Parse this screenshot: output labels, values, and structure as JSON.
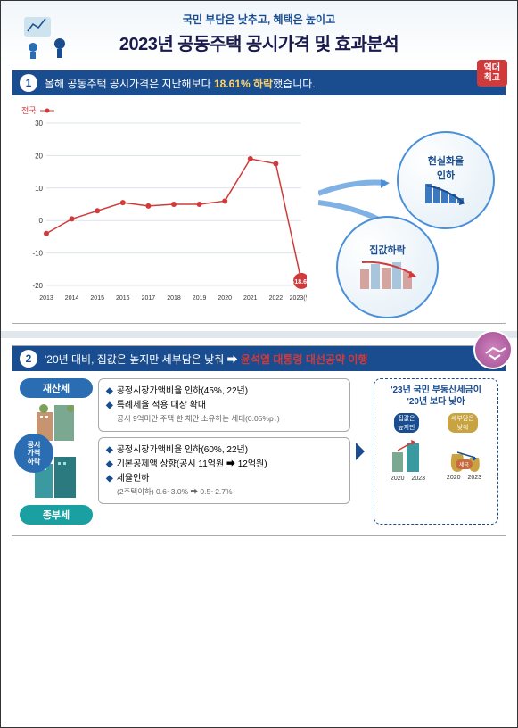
{
  "header": {
    "subtitle": "국민 부담은 낮추고, 혜택은 높이고",
    "title": "2023년 공동주택 공시가격 및 효과분석"
  },
  "panel1": {
    "num": "1",
    "text_pre": "올해 공동주택 공시가격은 지난해보다 ",
    "highlight": "18.61% 하락",
    "text_post": "했습니다.",
    "ribbon": "역대\n최고",
    "legend": "전국",
    "chart": {
      "years": [
        "2013",
        "2014",
        "2015",
        "2016",
        "2017",
        "2018",
        "2019",
        "2020",
        "2021",
        "2022",
        "2023(안)"
      ],
      "values": [
        -4,
        0.5,
        3,
        5.5,
        4.5,
        5,
        5,
        6,
        19,
        17.5,
        -18.6
      ],
      "ylim": [
        -20,
        30
      ],
      "ytick_step": 10,
      "line_color": "#d13a3a",
      "marker_color": "#d13a3a",
      "grid_color": "#dbe4ea",
      "label_color": "#333",
      "point_label": "-18.61"
    },
    "bubble1": "현실화율\n인하",
    "bubble2": "집값하락"
  },
  "panel2": {
    "num": "2",
    "text_pre": "'20년 대비, 집값은 높지만 세부담은 낮춰 ➡ ",
    "highlight": "윤석열 대통령 대선공약 이행",
    "left": {
      "tag1": "재산세",
      "tag2": "종부세",
      "side": "공시\n가격\n하락"
    },
    "box1": {
      "b1": "공정시장가액비율 인하(45%, 22년)",
      "b2": "특례세율 적용 대상 확대",
      "sub": "공시 9억미만 주택 한 채만 소유하는 세대(0.05%p↓)"
    },
    "box2": {
      "b1": "공정시장가액비율 인하(60%, 22년)",
      "b2": "기본공제액 상향(공시 11억원 ➡ 12억원)",
      "b3": "세율인하",
      "sub": "(2주택이하) 0.6~3.0% ➡ 0.5~2.7%"
    },
    "right": {
      "title_top": "'23년 국민 부동산세금이",
      "title_bot": "'20년 보다 낮아",
      "label_l": "집값은\n높지만",
      "label_r": "세부담은\n낮춰",
      "year1": "2020",
      "year2": "2023",
      "tag": "세금"
    }
  },
  "colors": {
    "primary": "#1a4d8f",
    "accent": "#d13a3a",
    "teal": "#1aa0a0",
    "highlight": "#ffd267"
  }
}
